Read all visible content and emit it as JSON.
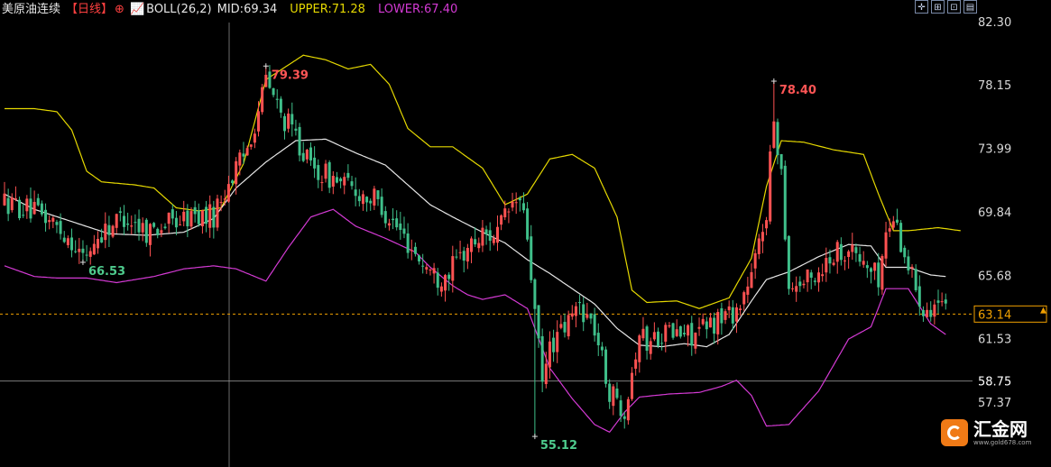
{
  "header": {
    "symbol": "美原油连续",
    "period": "【日线】",
    "period_icon": "circle-plus-icon",
    "indicator_icon": "chart-indicator-icon",
    "indicator": "BOLL(26,2)",
    "mid": "MID:69.34",
    "upper": "UPPER:71.28",
    "lower": "LOWER:67.40",
    "colors": {
      "symbol": "#e6e6e6",
      "period": "#ff4040",
      "indicator": "#e6e6e6",
      "upper": "#e5d800",
      "lower": "#d43ad4"
    }
  },
  "toolbar": [
    {
      "name": "crosshair-tool-icon",
      "glyph": "✛"
    },
    {
      "name": "candle-tool-icon",
      "glyph": "⊞"
    },
    {
      "name": "line-tool-icon",
      "glyph": "⊡"
    },
    {
      "name": "indicator-tool-icon",
      "glyph": "▤"
    }
  ],
  "logo": {
    "name": "汇金网",
    "url_text": "www.gold678.com"
  },
  "chart_data": {
    "type": "candlestick",
    "y_ticks": [
      "82.30",
      "78.15",
      "73.99",
      "69.84",
      "65.68",
      "61.53",
      "57.37"
    ],
    "ylim": [
      54.8,
      83.0
    ],
    "last_price": "63.14",
    "crosshair_price": "58.75",
    "annotations": [
      {
        "label": "79.39",
        "index": 70,
        "value": 79.39,
        "color": "#ff5555"
      },
      {
        "label": "78.40",
        "index": 206,
        "value": 78.4,
        "color": "#ff5555"
      },
      {
        "label": "66.53",
        "index": 21,
        "value": 66.53,
        "color": "#4ecb8d"
      },
      {
        "label": "55.12",
        "index": 142,
        "value": 55.12,
        "color": "#4ecb8d"
      }
    ],
    "colors": {
      "up": "#ff5252",
      "down": "#3fbf8a",
      "mid": "#e6e6e6",
      "upper": "#e5d800",
      "lower": "#d43ad4",
      "last": "#f0a000",
      "crosshair": "#9a9a9a"
    },
    "boll_upper": [
      [
        0,
        76.6
      ],
      [
        8,
        76.6
      ],
      [
        14,
        76.4
      ],
      [
        18,
        75.2
      ],
      [
        22,
        72.5
      ],
      [
        26,
        71.8
      ],
      [
        35,
        71.6
      ],
      [
        40,
        71.4
      ],
      [
        46,
        70.1
      ],
      [
        52,
        69.9
      ],
      [
        58,
        70.1
      ],
      [
        64,
        73
      ],
      [
        70,
        78.5
      ],
      [
        80,
        80.1
      ],
      [
        86,
        79.8
      ],
      [
        92,
        79.2
      ],
      [
        98,
        79.5
      ],
      [
        103,
        78.2
      ],
      [
        108,
        75.3
      ],
      [
        114,
        74.1
      ],
      [
        120,
        74.1
      ],
      [
        128,
        72.7
      ],
      [
        134,
        70.3
      ],
      [
        140,
        71
      ],
      [
        146,
        73.3
      ],
      [
        152,
        73.6
      ],
      [
        158,
        72.7
      ],
      [
        164,
        69.5
      ],
      [
        168,
        64.7
      ],
      [
        172,
        63.9
      ],
      [
        180,
        64
      ],
      [
        186,
        63.5
      ],
      [
        194,
        64.2
      ],
      [
        200,
        66.8
      ],
      [
        204,
        71.5
      ],
      [
        208,
        74.5
      ],
      [
        214,
        74.4
      ],
      [
        222,
        73.9
      ],
      [
        230,
        73.6
      ],
      [
        234,
        71
      ],
      [
        238,
        68.6
      ],
      [
        242,
        68.6
      ],
      [
        250,
        68.8
      ],
      [
        256,
        68.6
      ]
    ],
    "boll_mid": [
      [
        0,
        71
      ],
      [
        8,
        70
      ],
      [
        18,
        69.2
      ],
      [
        28,
        68.4
      ],
      [
        38,
        68.3
      ],
      [
        48,
        68.5
      ],
      [
        56,
        69.4
      ],
      [
        62,
        71.4
      ],
      [
        70,
        73.1
      ],
      [
        78,
        74.5
      ],
      [
        86,
        74.6
      ],
      [
        94,
        73.7
      ],
      [
        102,
        72.9
      ],
      [
        108,
        71.6
      ],
      [
        114,
        70.3
      ],
      [
        120,
        69.5
      ],
      [
        128,
        68.5
      ],
      [
        134,
        67.8
      ],
      [
        140,
        66.7
      ],
      [
        146,
        65.8
      ],
      [
        152,
        64.8
      ],
      [
        158,
        63.8
      ],
      [
        164,
        62.2
      ],
      [
        170,
        61.1
      ],
      [
        176,
        61
      ],
      [
        182,
        61.2
      ],
      [
        188,
        61
      ],
      [
        194,
        61.8
      ],
      [
        200,
        64
      ],
      [
        204,
        65.4
      ],
      [
        210,
        65.9
      ],
      [
        218,
        66.9
      ],
      [
        226,
        67.7
      ],
      [
        232,
        67.6
      ],
      [
        236,
        66.2
      ],
      [
        242,
        66.2
      ],
      [
        248,
        65.7
      ],
      [
        252,
        65.6
      ]
    ],
    "boll_lower": [
      [
        0,
        66.3
      ],
      [
        8,
        65.6
      ],
      [
        14,
        65.5
      ],
      [
        22,
        65.5
      ],
      [
        30,
        65.2
      ],
      [
        40,
        65.6
      ],
      [
        48,
        66.1
      ],
      [
        56,
        66.3
      ],
      [
        62,
        66.1
      ],
      [
        70,
        65.3
      ],
      [
        76,
        67.5
      ],
      [
        82,
        69.5
      ],
      [
        88,
        70
      ],
      [
        94,
        68.9
      ],
      [
        102,
        68.1
      ],
      [
        110,
        67.2
      ],
      [
        114,
        66.2
      ],
      [
        120,
        65
      ],
      [
        124,
        64.4
      ],
      [
        128,
        64.1
      ],
      [
        134,
        64.4
      ],
      [
        140,
        63.5
      ],
      [
        146,
        59.6
      ],
      [
        152,
        57.6
      ],
      [
        158,
        55.9
      ],
      [
        162,
        55.4
      ],
      [
        166,
        56.7
      ],
      [
        170,
        57.7
      ],
      [
        178,
        57.9
      ],
      [
        186,
        58
      ],
      [
        192,
        58.4
      ],
      [
        196,
        58.8
      ],
      [
        200,
        57.8
      ],
      [
        204,
        55.8
      ],
      [
        210,
        55.9
      ],
      [
        218,
        58.1
      ],
      [
        226,
        61.5
      ],
      [
        232,
        62.3
      ],
      [
        236,
        64.8
      ],
      [
        242,
        64.8
      ],
      [
        248,
        62.5
      ],
      [
        252,
        61.8
      ]
    ],
    "candle_keypoints": [
      [
        0,
        70.5
      ],
      [
        6,
        70
      ],
      [
        12,
        69.3
      ],
      [
        18,
        68
      ],
      [
        21,
        66.8
      ],
      [
        26,
        68.5
      ],
      [
        32,
        69.6
      ],
      [
        38,
        68.6
      ],
      [
        44,
        69.1
      ],
      [
        50,
        69.5
      ],
      [
        56,
        69.6
      ],
      [
        60,
        71.8
      ],
      [
        64,
        73.4
      ],
      [
        68,
        76.5
      ],
      [
        70,
        78.5
      ],
      [
        74,
        76.2
      ],
      [
        78,
        74.8
      ],
      [
        82,
        72.7
      ],
      [
        88,
        72
      ],
      [
        94,
        71.2
      ],
      [
        100,
        70.5
      ],
      [
        106,
        68.5
      ],
      [
        112,
        66.5
      ],
      [
        116,
        65.5
      ],
      [
        120,
        66.2
      ],
      [
        124,
        67.5
      ],
      [
        128,
        68.3
      ],
      [
        132,
        68.5
      ],
      [
        136,
        70.3
      ],
      [
        138,
        70.5
      ],
      [
        140,
        68.2
      ],
      [
        142,
        63.2
      ],
      [
        144,
        58.5
      ],
      [
        146,
        61
      ],
      [
        150,
        62.2
      ],
      [
        154,
        63.8
      ],
      [
        158,
        62.2
      ],
      [
        162,
        58
      ],
      [
        166,
        57
      ],
      [
        170,
        62
      ],
      [
        172,
        61.2
      ],
      [
        176,
        62
      ],
      [
        180,
        61.8
      ],
      [
        184,
        61.8
      ],
      [
        188,
        62.2
      ],
      [
        192,
        63
      ],
      [
        196,
        63.4
      ],
      [
        200,
        65.5
      ],
      [
        204,
        70
      ],
      [
        206,
        76
      ],
      [
        208,
        72.5
      ],
      [
        210,
        65
      ],
      [
        216,
        65.4
      ],
      [
        222,
        67.2
      ],
      [
        226,
        67.5
      ],
      [
        230,
        66.5
      ],
      [
        234,
        65.5
      ],
      [
        236,
        68.3
      ],
      [
        238,
        69.6
      ],
      [
        242,
        66.3
      ],
      [
        246,
        63.7
      ],
      [
        250,
        63.8
      ],
      [
        252,
        63.14
      ]
    ]
  }
}
